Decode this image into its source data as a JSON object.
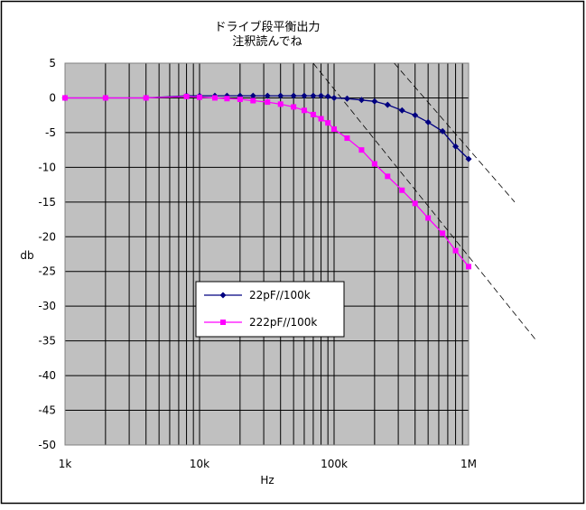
{
  "chart_data": {
    "type": "line",
    "title_lines": [
      "ドライブ段平衡出力",
      "注釈読んでね"
    ],
    "xlabel": "Hz",
    "ylabel": "db",
    "x_scale": "log",
    "xlim": [
      1000,
      1000000
    ],
    "ylim": [
      -50,
      5
    ],
    "x_ticks": [
      {
        "value": 1000,
        "label": "1k"
      },
      {
        "value": 10000,
        "label": "10k"
      },
      {
        "value": 100000,
        "label": "100k"
      },
      {
        "value": 1000000,
        "label": "1M"
      }
    ],
    "y_ticks": [
      5,
      0,
      -5,
      -10,
      -15,
      -20,
      -25,
      -30,
      -35,
      -40,
      -45,
      -50
    ],
    "grid": true,
    "plot_background": "#c0c0c0",
    "legend_position": "lower-left",
    "series": [
      {
        "name": "22pF//100k",
        "color": "#000080",
        "marker": "diamond",
        "x": [
          1000,
          2000,
          4000,
          8000,
          10000,
          13000,
          16000,
          20000,
          25000,
          32000,
          40000,
          50000,
          60000,
          70000,
          80000,
          90000,
          100000,
          125000,
          160000,
          200000,
          250000,
          320000,
          400000,
          500000,
          640000,
          800000,
          1000000
        ],
        "y": [
          0,
          0,
          0,
          0.3,
          0.3,
          0.3,
          0.3,
          0.3,
          0.3,
          0.3,
          0.3,
          0.3,
          0.3,
          0.3,
          0.3,
          0.2,
          0,
          -0.1,
          -0.3,
          -0.5,
          -1,
          -1.8,
          -2.5,
          -3.5,
          -4.8,
          -7,
          -8.8
        ]
      },
      {
        "name": "222pF//100k",
        "color": "#ff00ff",
        "marker": "square",
        "x": [
          1000,
          2000,
          4000,
          8000,
          10000,
          13000,
          16000,
          20000,
          25000,
          32000,
          40000,
          50000,
          60000,
          70000,
          80000,
          90000,
          100000,
          125000,
          160000,
          200000,
          250000,
          320000,
          400000,
          500000,
          640000,
          800000,
          1000000
        ],
        "y": [
          0,
          0,
          0,
          0.2,
          0.1,
          0,
          -0.1,
          -0.2,
          -0.4,
          -0.6,
          -0.9,
          -1.3,
          -1.8,
          -2.4,
          -3,
          -3.6,
          -4.5,
          -5.8,
          -7.5,
          -9.5,
          -11.3,
          -13.3,
          -15.2,
          -17.3,
          -19.5,
          -22,
          -24.3
        ]
      }
    ],
    "asymptotes": [
      {
        "x1": 70000,
        "y1": 5,
        "x2": 3200000,
        "y2": -35
      },
      {
        "x1": 280000,
        "y1": 5,
        "x2": 2200000,
        "y2": -15
      }
    ]
  }
}
